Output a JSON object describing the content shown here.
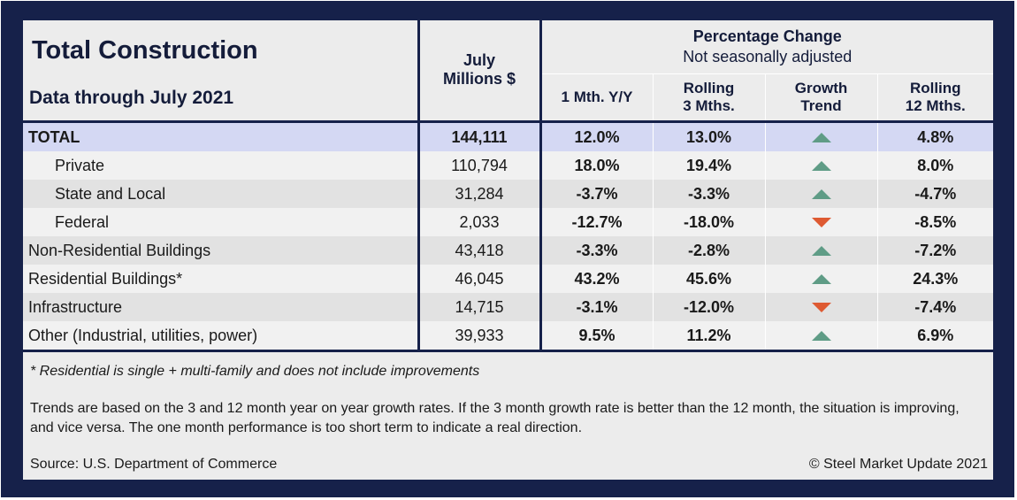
{
  "title": "Total Construction",
  "subtitle": "Data through July 2021",
  "headers": {
    "july_line1": "July",
    "july_line2": "Millions $",
    "pct_title": "Percentage Change",
    "pct_sub": "Not seasonally adjusted",
    "cols": [
      [
        "1 Mth. Y/Y"
      ],
      [
        "Rolling",
        "3 Mths."
      ],
      [
        "Growth",
        "Trend"
      ],
      [
        "Rolling",
        "12 Mths."
      ]
    ]
  },
  "colors": {
    "frame": "#16214a",
    "positive": "#2bb64a",
    "negative": "#c81414",
    "trend_up": "#5f9c86",
    "trend_down": "#de5a32",
    "total_row": "#d4d8f3"
  },
  "chart_data": {
    "type": "table",
    "title": "Total Construction",
    "subtitle": "Data through July 2021",
    "columns": [
      "July Millions $",
      "1 Mth. Y/Y",
      "Rolling 3 Mths.",
      "Growth Trend",
      "Rolling 12 Mths."
    ],
    "rows": [
      {
        "label": "TOTAL",
        "indent": false,
        "value": "144,111",
        "m1": "12.0%",
        "m3": "13.0%",
        "trend": "up",
        "m12": "4.8%"
      },
      {
        "label": "Private",
        "indent": true,
        "value": "110,794",
        "m1": "18.0%",
        "m3": "19.4%",
        "trend": "up",
        "m12": "8.0%"
      },
      {
        "label": "State and Local",
        "indent": true,
        "value": "31,284",
        "m1": "-3.7%",
        "m3": "-3.3%",
        "trend": "up",
        "m12": "-4.7%"
      },
      {
        "label": "Federal",
        "indent": true,
        "value": "2,033",
        "m1": "-12.7%",
        "m3": "-18.0%",
        "trend": "down",
        "m12": "-8.5%"
      },
      {
        "label": "Non-Residential Buildings",
        "indent": false,
        "value": "43,418",
        "m1": "-3.3%",
        "m3": "-2.8%",
        "trend": "up",
        "m12": "-7.2%"
      },
      {
        "label": "Residential Buildings*",
        "indent": false,
        "value": "46,045",
        "m1": "43.2%",
        "m3": "45.6%",
        "trend": "up",
        "m12": "24.3%"
      },
      {
        "label": "Infrastructure",
        "indent": false,
        "value": "14,715",
        "m1": "-3.1%",
        "m3": "-12.0%",
        "trend": "down",
        "m12": "-7.4%"
      },
      {
        "label": "Other (Industrial, utilities, power)",
        "indent": false,
        "value": "39,933",
        "m1": "9.5%",
        "m3": "11.2%",
        "trend": "up",
        "m12": "6.9%"
      }
    ]
  },
  "notes": {
    "footnote": "* Residential is single + multi-family and does not include improvements",
    "trends": "Trends are based on the 3 and 12 month year on year growth rates. If the 3 month growth rate is better than the 12 month, the situation is improving, and vice versa. The one month performance is too short term to indicate a real direction.",
    "source": "Source: U.S. Department of Commerce",
    "copyright": "© Steel Market Update 2021"
  }
}
